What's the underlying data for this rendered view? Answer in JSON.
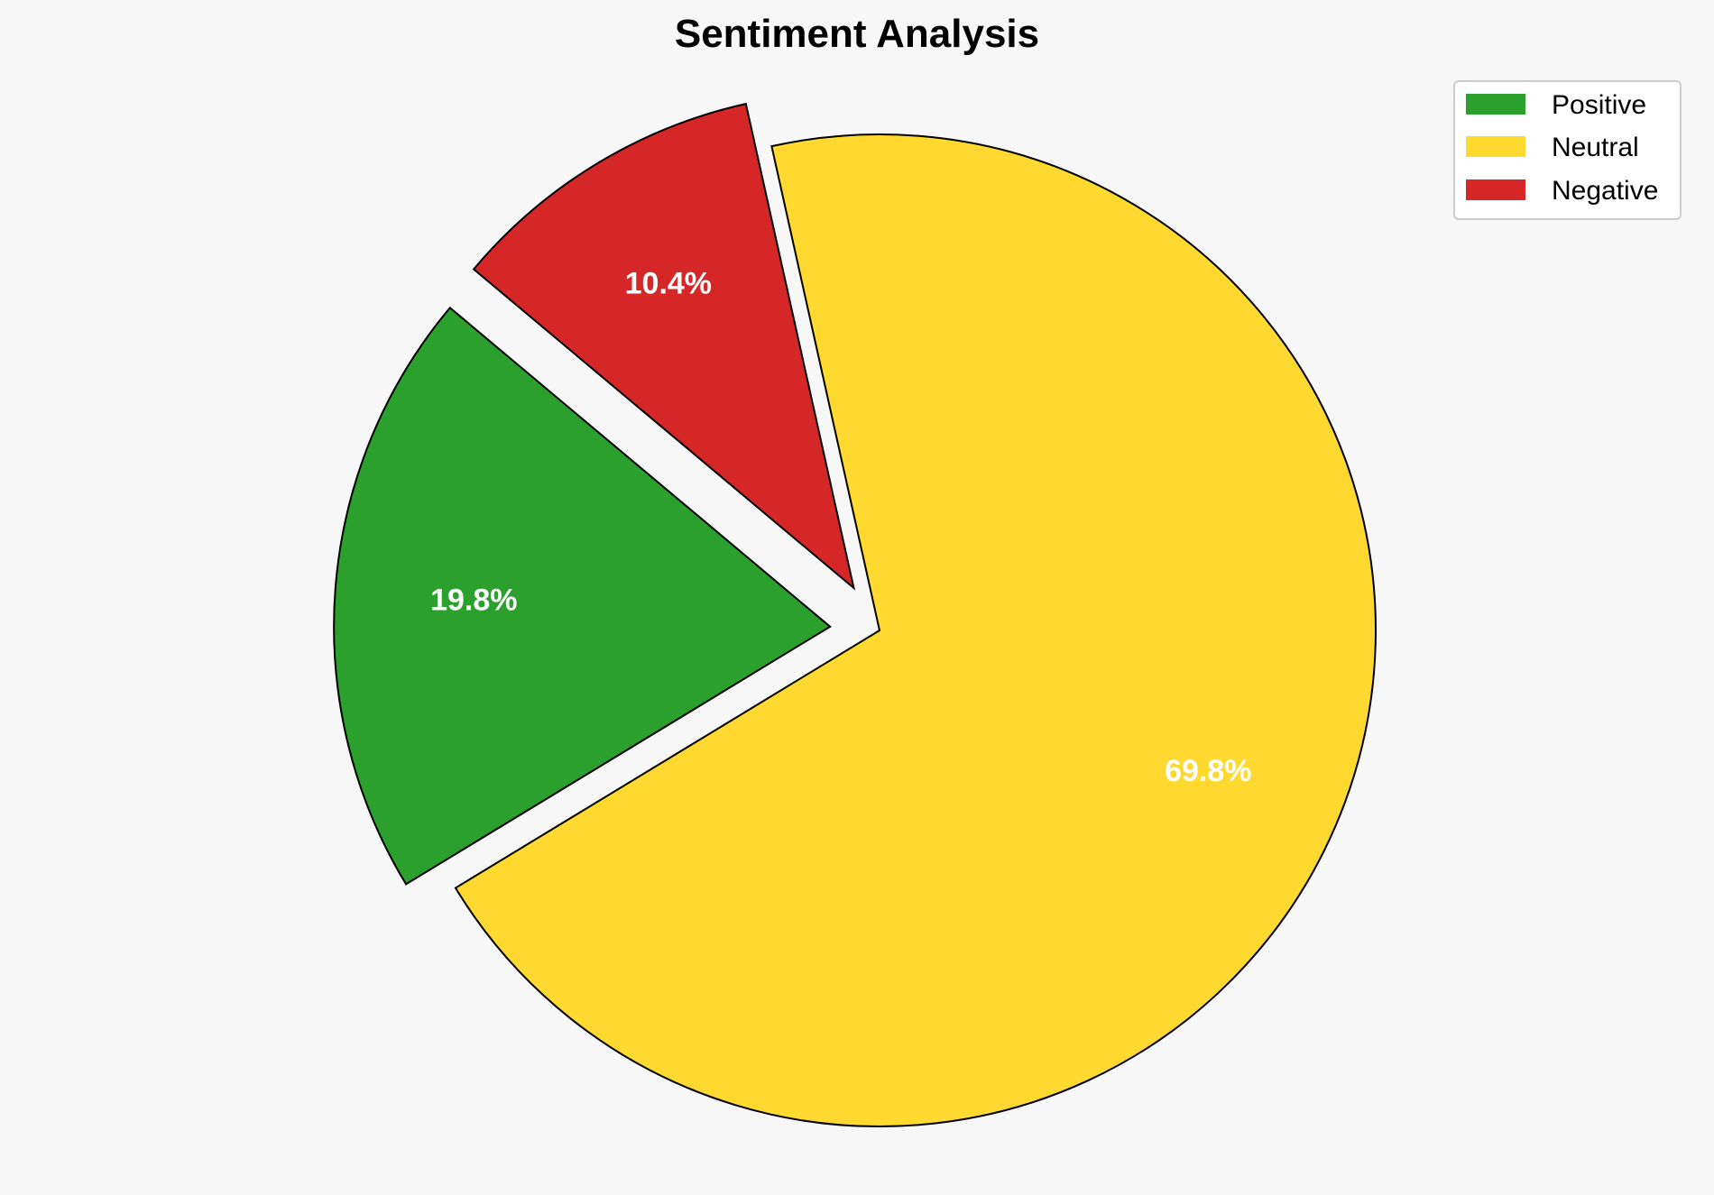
{
  "chart_data": {
    "type": "pie",
    "title": "Sentiment Analysis",
    "categories": [
      "Positive",
      "Neutral",
      "Negative"
    ],
    "values": [
      19.8,
      69.8,
      10.4
    ],
    "labels": [
      "19.8%",
      "69.8%",
      "10.4%"
    ],
    "colors": [
      "#2ca02c",
      "#ffd92f",
      "#d62728"
    ],
    "explode": [
      0.1,
      0,
      0.1
    ],
    "start_angle": 140,
    "direction": "counterclockwise",
    "legend_position": "top-right",
    "background": "#f7f7f7"
  }
}
